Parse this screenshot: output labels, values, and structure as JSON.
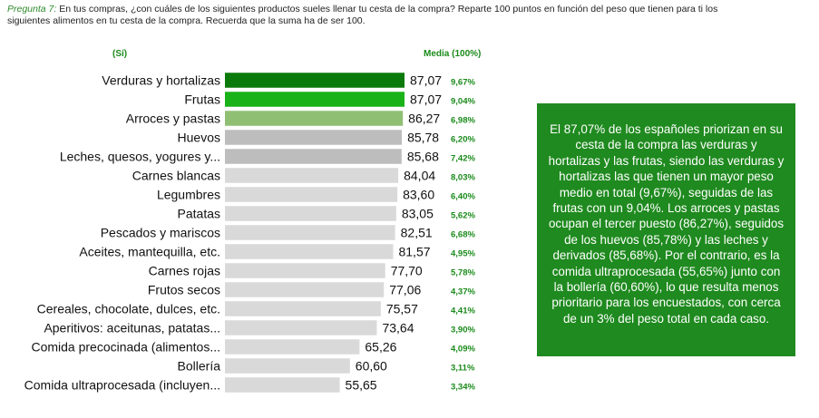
{
  "question": {
    "label": "Pregunta 7:",
    "text": "En tus compras, ¿con cuáles de los siguientes productos sueles llenar tu cesta de la compra? Reparte 100 puntos en función del peso que tienen para ti los siguientes alimentos en tu cesta de la compra. Recuerda que la suma ha de ser 100."
  },
  "headers": {
    "si": "(Sí)",
    "media": "Media (100%)"
  },
  "colors": {
    "dark_green": "#0a7a0a",
    "bright_green": "#19b219",
    "light_green": "#8fbf73",
    "gray_dark": "#bdbdbd",
    "gray_light": "#d9d9d9",
    "box_green": "#1f8a1f"
  },
  "chart_data": {
    "type": "bar",
    "orientation": "horizontal",
    "xlim": [
      0,
      100
    ],
    "categories": [
      "Verduras y hortalizas",
      "Frutas",
      "Arroces y pastas",
      "Huevos",
      "Leches, quesos, yogures y...",
      "Carnes blancas",
      "Legumbres",
      "Patatas",
      "Pescados y mariscos",
      "Aceites, mantequilla, etc.",
      "Carnes rojas",
      "Frutos secos",
      "Cereales, chocolate, dulces, etc.",
      "Aperitivos: aceitunas, patatas...",
      "Comida precocinada (alimentos...",
      "Bollería",
      "Comida ultraprocesada (incluyen..."
    ],
    "values": [
      87.07,
      87.07,
      86.27,
      85.78,
      85.68,
      84.04,
      83.6,
      83.05,
      82.51,
      81.57,
      77.7,
      77.06,
      75.57,
      73.64,
      65.26,
      60.6,
      55.65
    ],
    "value_labels": [
      "87,07",
      "87,07",
      "86,27",
      "85,78",
      "85,68",
      "84,04",
      "83,60",
      "83,05",
      "82,51",
      "81,57",
      "77,70",
      "77,06",
      "75,57",
      "73,64",
      "65,26",
      "60,60",
      "55,65"
    ],
    "media": [
      "9,67%",
      "9,04%",
      "6,98%",
      "6,20%",
      "7,42%",
      "8,03%",
      "6,40%",
      "5,62%",
      "6,68%",
      "4,95%",
      "5,78%",
      "4,37%",
      "4,41%",
      "3,90%",
      "4,09%",
      "3,11%",
      "3,34%"
    ],
    "bar_colors": [
      "#0a7a0a",
      "#19b219",
      "#8fbf73",
      "#bdbdbd",
      "#bdbdbd",
      "#d9d9d9",
      "#d9d9d9",
      "#d9d9d9",
      "#d9d9d9",
      "#d9d9d9",
      "#d9d9d9",
      "#d9d9d9",
      "#d9d9d9",
      "#d9d9d9",
      "#d9d9d9",
      "#d9d9d9",
      "#d9d9d9"
    ]
  },
  "note": {
    "text": "El 87,07% de los españoles priorizan en su cesta de la compra las verduras y hortalizas y las frutas, siendo las verduras y hortalizas las que tienen un mayor peso medio en total (9,67%), seguidas de las frutas con un 9,04%. Los arroces y pastas ocupan el tercer puesto (86,27%), seguidos de los huevos (85,78%) y las leches y derivados (85,68%). Por el contrario, es la comida ultraprocesada (55,65%) junto con la bollería (60,60%), lo que resulta menos prioritario para los encuestados, con cerca de un 3% del peso total en cada caso."
  }
}
